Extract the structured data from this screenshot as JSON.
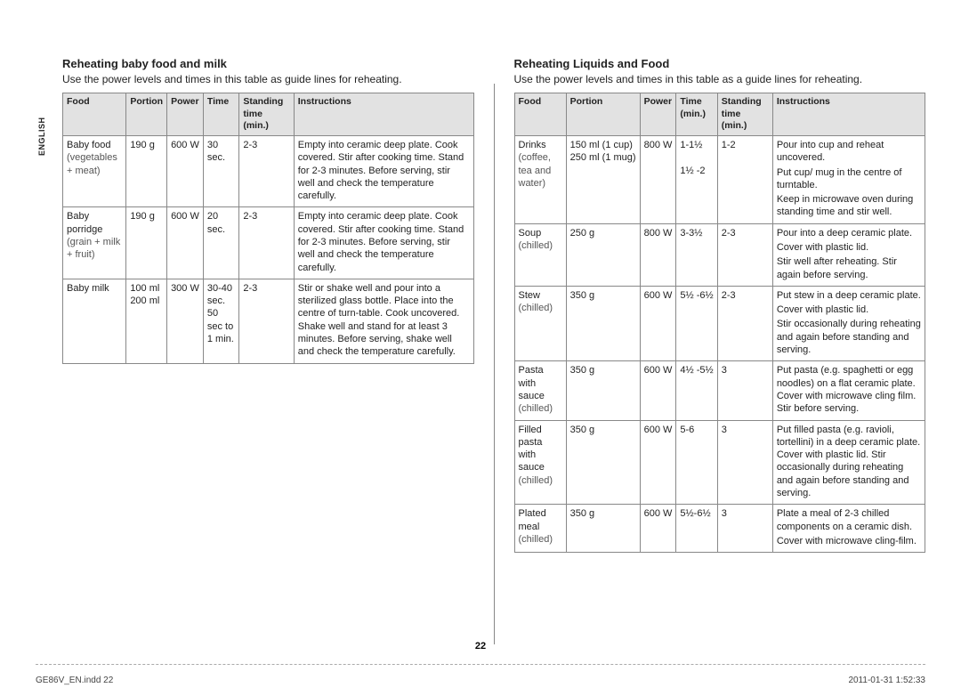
{
  "sidebarLabel": "ENGLISH",
  "pageNumber": "22",
  "footer": {
    "file": "GE86V_EN.indd   22",
    "timestamp": "2011-01-31   1:52:33"
  },
  "left": {
    "title": "Reheating baby food and milk",
    "intro": "Use the power levels and times in this table as guide lines for reheating.",
    "headers": [
      "Food",
      "Portion",
      "Power",
      "Time",
      "Standing time (min.)",
      "Instructions"
    ],
    "rows": [
      {
        "food": "Baby food",
        "foodSub": "(vegetables + meat)",
        "portion": "190 g",
        "power": "600 W",
        "time": "30 sec.",
        "standing": "2-3",
        "instructions": [
          "Empty into ceramic deep plate. Cook covered. Stir after cooking time. Stand for 2-3 minutes. Before serving, stir well and check the temperature carefully."
        ]
      },
      {
        "food": "Baby porridge",
        "foodSub": "(grain + milk + fruit)",
        "portion": "190 g",
        "power": "600 W",
        "time": "20 sec.",
        "standing": "2-3",
        "instructions": [
          "Empty into ceramic deep plate. Cook covered. Stir after cooking time. Stand for 2-3 minutes. Before serving, stir well and check the temperature carefully."
        ]
      },
      {
        "food": "Baby milk",
        "foodSub": "",
        "portion": "100 ml\n200 ml",
        "power": "300 W",
        "time": "30-40 sec.\n50 sec to 1 min.",
        "standing": "2-3",
        "instructions": [
          "Stir or shake well and pour into a sterilized glass bottle. Place into the centre of turn-table. Cook uncovered. Shake well and stand for at least 3 minutes. Before serving, shake well and check the temperature carefully."
        ]
      }
    ]
  },
  "right": {
    "title": "Reheating Liquids and Food",
    "intro": "Use the power levels and times in this table as a guide lines for reheating.",
    "headers": [
      "Food",
      "Portion",
      "Power",
      "Time (min.)",
      "Standing time (min.)",
      "Instructions"
    ],
    "rows": [
      {
        "food": "Drinks",
        "foodSub": "(coffee, tea and water)",
        "portion": "150 ml (1 cup)\n250 ml (1 mug)",
        "power": "800 W",
        "time": "1-1½\n\n1½ -2",
        "standing": "1-2",
        "instructions": [
          "Pour into cup and reheat uncovered.",
          "Put cup/ mug in the centre of turntable.",
          "Keep in microwave oven during standing time and stir well."
        ]
      },
      {
        "food": "Soup",
        "foodSub": "(chilled)",
        "portion": "250 g",
        "power": "800 W",
        "time": "3-3½",
        "standing": "2-3",
        "instructions": [
          "Pour into a deep ceramic plate.",
          "Cover with plastic lid.",
          "Stir well after reheating. Stir again before serving."
        ]
      },
      {
        "food": "Stew",
        "foodSub": "(chilled)",
        "portion": "350 g",
        "power": "600 W",
        "time": "5½ -6½",
        "standing": "2-3",
        "instructions": [
          "Put stew in a deep ceramic plate.",
          "Cover with plastic lid.",
          "Stir occasionally during reheating and again before standing and serving."
        ]
      },
      {
        "food": "Pasta with sauce",
        "foodSub": "(chilled)",
        "portion": "350 g",
        "power": "600 W",
        "time": "4½ -5½",
        "standing": "3",
        "instructions": [
          "Put pasta (e.g. spaghetti or egg noodles) on a flat ceramic plate. Cover with microwave cling film. Stir before serving."
        ]
      },
      {
        "food": "Filled pasta with sauce",
        "foodSub": "(chilled)",
        "portion": "350 g",
        "power": "600 W",
        "time": "5-6",
        "standing": "3",
        "instructions": [
          "Put filled pasta (e.g. ravioli, tortellini) in a deep ceramic plate. Cover with plastic lid. Stir occasionally during reheating and again before standing and serving."
        ]
      },
      {
        "food": "Plated meal",
        "foodSub": "(chilled)",
        "portion": "350 g",
        "power": "600 W",
        "time": "5½-6½",
        "standing": "3",
        "instructions": [
          "Plate a meal of 2-3 chilled components on a ceramic dish.",
          "Cover with microwave cling-film."
        ]
      }
    ]
  },
  "style": {
    "headerBg": "#e2e2e2",
    "borderColor": "#888888",
    "textColor": "#222222",
    "pageBg": "#ffffff",
    "fontSizeBody": 11,
    "fontSizeTitle": 13
  }
}
